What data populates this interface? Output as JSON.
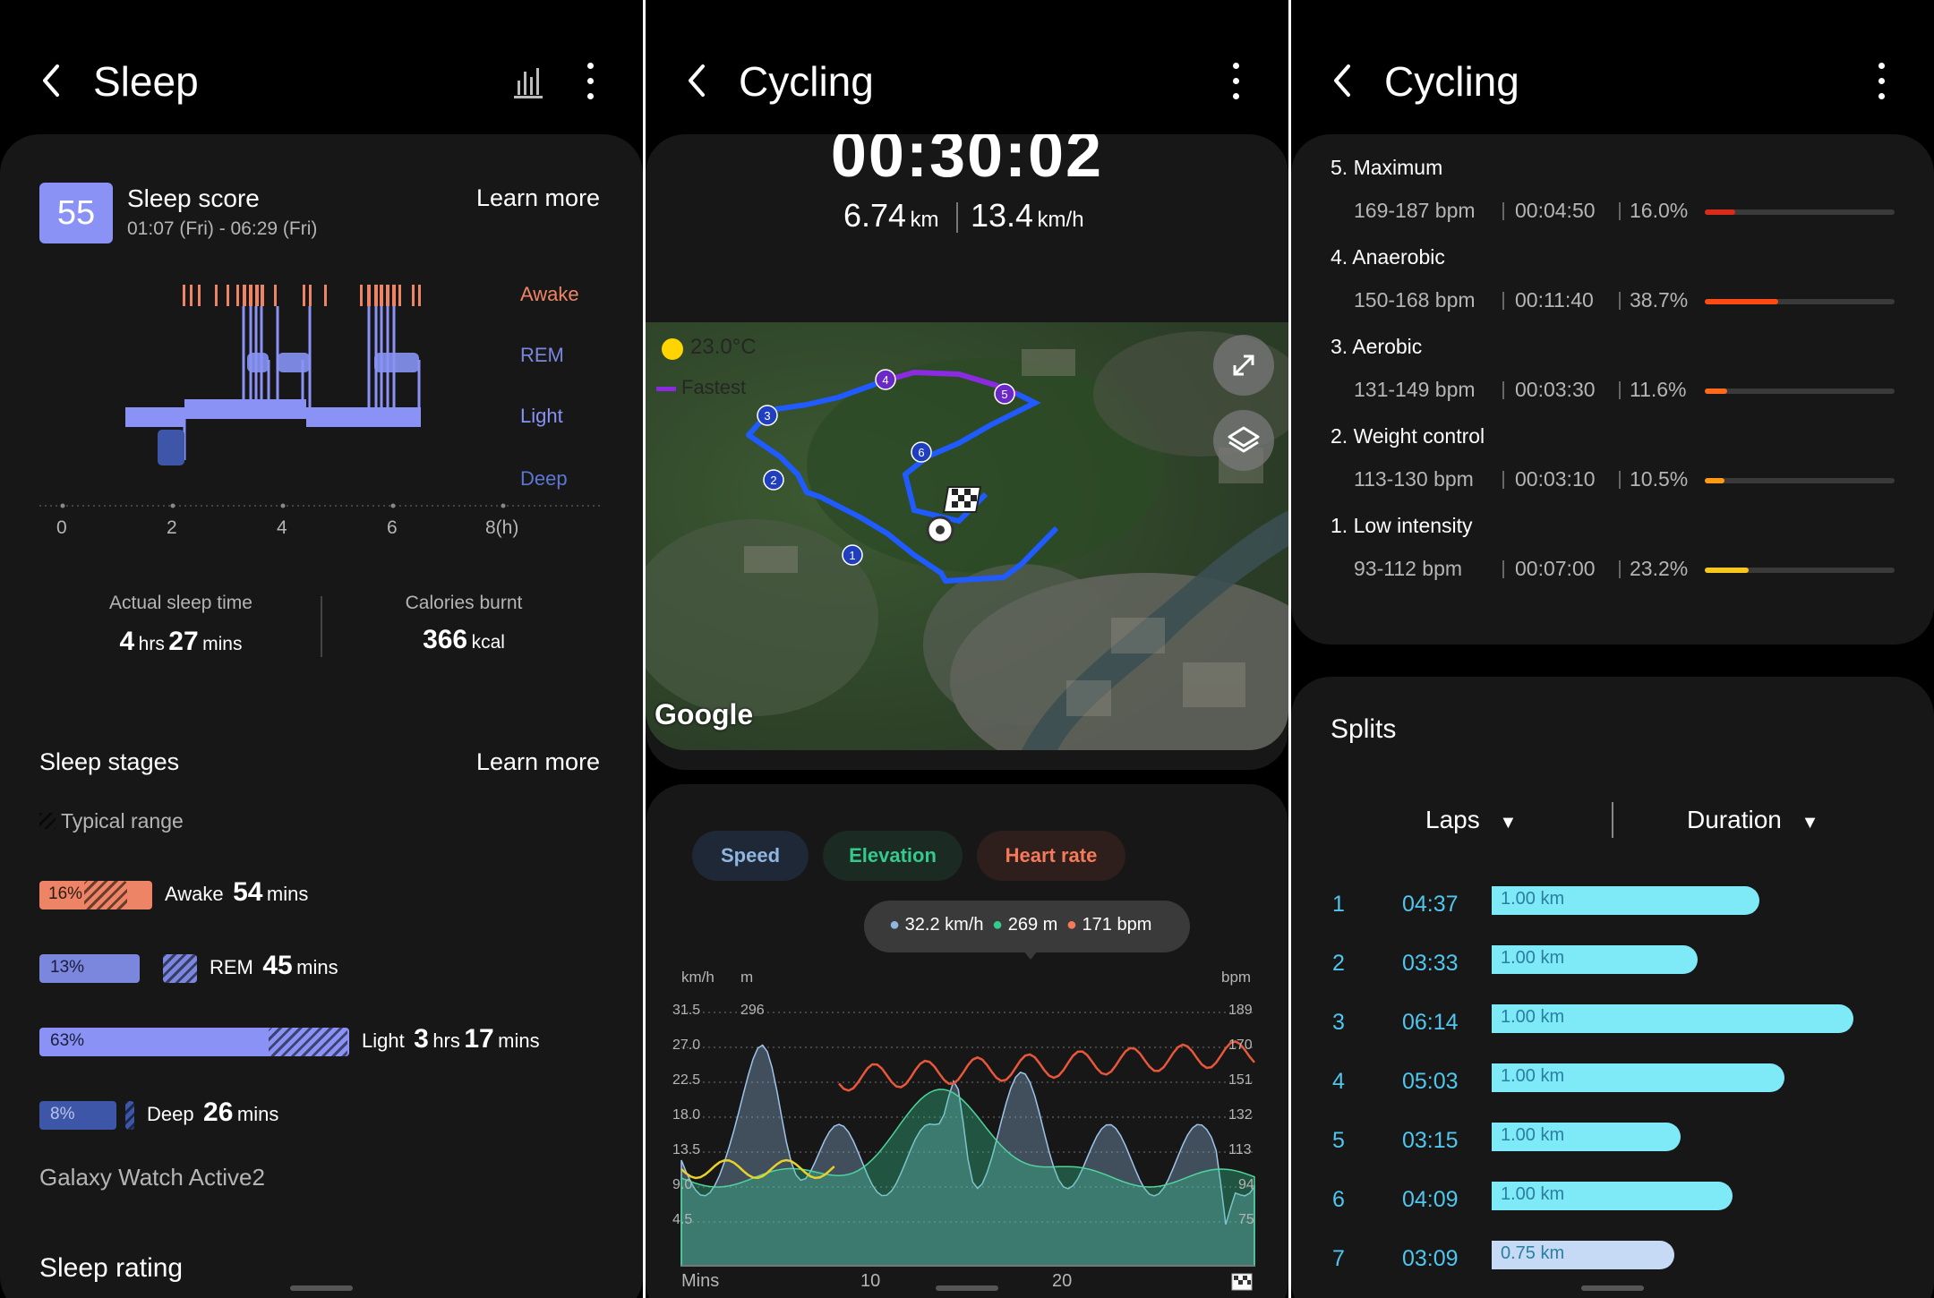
{
  "sleep": {
    "title": "Sleep",
    "score": "55",
    "score_label": "Sleep score",
    "time_range": "01:07 (Fri) - 06:29 (Fri)",
    "learn_more": "Learn more",
    "stage_labels": {
      "awake": "Awake",
      "rem": "REM",
      "light": "Light",
      "deep": "Deep"
    },
    "x_ticks": [
      "0",
      "2",
      "4",
      "6",
      "8(h)"
    ],
    "actual_sleep_label": "Actual sleep time",
    "actual_sleep": {
      "h": "4",
      "h_unit": "hrs",
      "m": "27",
      "m_unit": "mins"
    },
    "calories_label": "Calories burnt",
    "calories": {
      "value": "366",
      "unit": "kcal"
    },
    "stages_title": "Sleep stages",
    "typical_range": "Typical range",
    "stages": [
      {
        "pct": "16%",
        "name": "Awake",
        "h": "",
        "h_unit": "",
        "m": "54",
        "m_unit": "mins",
        "color": "#ee8466"
      },
      {
        "pct": "13%",
        "name": "REM",
        "h": "",
        "h_unit": "",
        "m": "45",
        "m_unit": "mins",
        "color": "#7b86dd"
      },
      {
        "pct": "63%",
        "name": "Light",
        "h": "3",
        "h_unit": "hrs",
        "m": "17",
        "m_unit": "mins",
        "color": "#8a93f5"
      },
      {
        "pct": "8%",
        "name": "Deep",
        "h": "",
        "h_unit": "",
        "m": "26",
        "m_unit": "mins",
        "color": "#3d56a7"
      }
    ],
    "device": "Galaxy Watch Active2",
    "rating_title": "Sleep rating",
    "colors": {
      "awake": "#ee8466",
      "rem": "#7b86dd",
      "light": "#8a93f5",
      "deep": "#3d56a7",
      "score_bg": "#8a93f5"
    }
  },
  "cycling_map": {
    "title": "Cycling",
    "duration": "00:30:02",
    "distance": "6.74",
    "distance_unit": "km",
    "speed": "13.4",
    "speed_unit": "km/h",
    "weather": "23.0°C",
    "fastest_label": "Fastest",
    "map_provider": "Google",
    "lap_markers": [
      "1",
      "2",
      "3",
      "4",
      "5",
      "6"
    ],
    "tabs": [
      "Speed",
      "Elevation",
      "Heart rate"
    ],
    "tooltip": {
      "speed": "32.2 km/h",
      "elevation": "269 m",
      "heart_rate": "171 bpm"
    },
    "chart_units": {
      "left1": "km/h",
      "left2": "m",
      "right": "bpm"
    },
    "left_ticks": [
      "31.5",
      "27.0",
      "22.5",
      "18.0",
      "13.5",
      "9.0",
      "4.5"
    ],
    "elev_ticks": [
      "296"
    ],
    "right_ticks": [
      "189",
      "170",
      "151",
      "132",
      "113",
      "94",
      "75"
    ],
    "x_label": "Mins",
    "x_ticks": [
      "10",
      "20"
    ],
    "colors": {
      "speed": "#8fb6e0",
      "elevation": "#35c98e",
      "heart_rate": "#e8573a",
      "route": "#1f5bff",
      "fastest": "#8a2be2"
    }
  },
  "cycling_zones": {
    "title": "Cycling",
    "zones": [
      {
        "name": "5. Maximum",
        "range": "169-187 bpm",
        "time": "00:04:50",
        "pct": "16.0%",
        "fraction": 0.16,
        "color": "#d92a1c"
      },
      {
        "name": "4. Anaerobic",
        "range": "150-168 bpm",
        "time": "00:11:40",
        "pct": "38.7%",
        "fraction": 0.387,
        "color": "#ff4a14"
      },
      {
        "name": "3. Aerobic",
        "range": "131-149 bpm",
        "time": "00:03:30",
        "pct": "11.6%",
        "fraction": 0.116,
        "color": "#ff6a1a"
      },
      {
        "name": "2. Weight control",
        "range": "113-130 bpm",
        "time": "00:03:10",
        "pct": "10.5%",
        "fraction": 0.105,
        "color": "#ff9a12"
      },
      {
        "name": "1. Low intensity",
        "range": "93-112 bpm",
        "time": "00:07:00",
        "pct": "23.2%",
        "fraction": 0.232,
        "color": "#f7c81b"
      }
    ],
    "splits_title": "Splits",
    "laps_header": "Laps",
    "duration_header": "Duration",
    "splits": [
      {
        "lap": "1",
        "time": "04:37",
        "dist": "1.00 km",
        "seconds": 277
      },
      {
        "lap": "2",
        "time": "03:33",
        "dist": "1.00 km",
        "seconds": 213
      },
      {
        "lap": "3",
        "time": "06:14",
        "dist": "1.00 km",
        "seconds": 374
      },
      {
        "lap": "4",
        "time": "05:03",
        "dist": "1.00 km",
        "seconds": 303
      },
      {
        "lap": "5",
        "time": "03:15",
        "dist": "1.00 km",
        "seconds": 195
      },
      {
        "lap": "6",
        "time": "04:09",
        "dist": "1.00 km",
        "seconds": 249
      },
      {
        "lap": "7",
        "time": "03:09",
        "dist": "0.75 km",
        "seconds": 189
      }
    ],
    "colors": {
      "split_bar": "#7ee9f7",
      "split_bar_partial": "#c6d9f5",
      "lap_text": "#4fc6ee"
    }
  }
}
